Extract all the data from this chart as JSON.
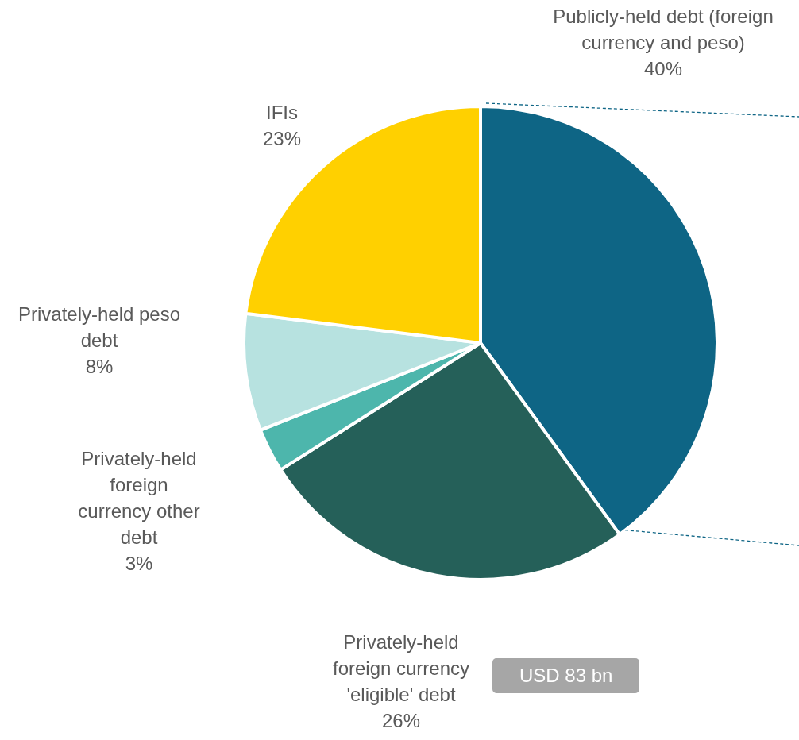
{
  "chart_data": {
    "type": "pie",
    "categories": [
      "Publicly-held debt (foreign currency and peso)",
      "Privately-held foreign currency 'eligible' debt",
      "Privately-held foreign currency other debt",
      "Privately-held peso debt",
      "IFIs"
    ],
    "values": [
      40,
      26,
      3,
      8,
      23
    ],
    "value_labels": [
      "40%",
      "26%",
      "3%",
      "8%",
      "23%"
    ],
    "colors": [
      "#0e6585",
      "#256059",
      "#4db6ac",
      "#b7e2e0",
      "#ffd000"
    ],
    "annotations": [
      "USD 83 bn"
    ],
    "legend": false
  }
}
